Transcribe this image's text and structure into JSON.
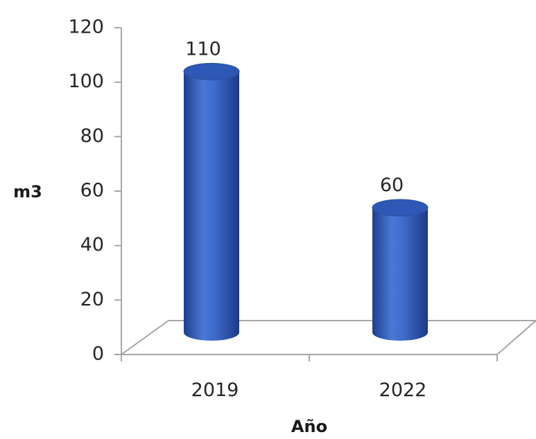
{
  "chart_data": {
    "type": "bar",
    "style": "3d-cylinder",
    "categories": [
      "2019",
      "2022"
    ],
    "values": [
      110,
      60
    ],
    "data_labels": [
      "110",
      "60"
    ],
    "title": "",
    "xlabel": "Año",
    "ylabel": "m3",
    "ylim": [
      0,
      120
    ],
    "y_ticks": [
      "0",
      "20",
      "40",
      "60",
      "80",
      "100",
      "120"
    ],
    "grid": false,
    "legend": "none",
    "colors": {
      "bar_fill": "#3a66c4",
      "bar_top": "#2e58b5",
      "axis": "#a6a6a6",
      "text": "#262626"
    }
  }
}
